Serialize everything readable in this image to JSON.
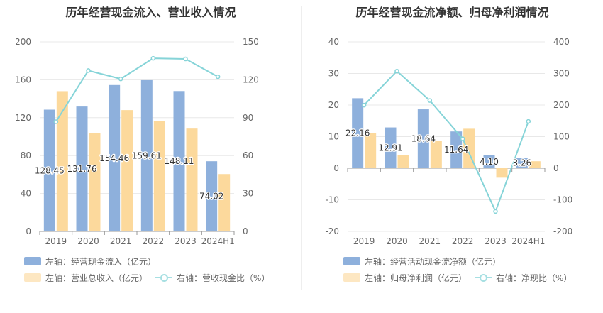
{
  "chart_data": [
    {
      "type": "bar",
      "title": "历年经营现金流入、营业收入情况",
      "categories": [
        "2019",
        "2020",
        "2021",
        "2022",
        "2023",
        "2024H1"
      ],
      "series": [
        {
          "name": "左轴：经营现金流入（亿元）",
          "axis": "left",
          "type": "bar",
          "color": "#8eb0dc",
          "values": [
            128.45,
            131.76,
            154.46,
            159.61,
            148.11,
            74.02
          ],
          "labels_shown": true
        },
        {
          "name": "左轴：营业总收入（亿元）",
          "axis": "left",
          "type": "bar",
          "color": "#fcd99c",
          "values": [
            148,
            103.5,
            128,
            116.5,
            108.5,
            60.5
          ],
          "labels_shown": false
        },
        {
          "name": "右轴：营收现金比（%）",
          "axis": "right",
          "type": "line",
          "color": "#86d4d8",
          "values": [
            86.8,
            127.3,
            120.7,
            137.0,
            136.5,
            122.4
          ],
          "labels_shown": false
        }
      ],
      "left_axis": {
        "min": 0,
        "max": 200,
        "ticks": [
          "0",
          "40",
          "80",
          "120",
          "160",
          "200"
        ]
      },
      "right_axis": {
        "min": 0,
        "max": 150,
        "ticks": [
          "0",
          "30",
          "60",
          "90",
          "120",
          "150"
        ]
      },
      "grid": true,
      "legend_position": "bottom-left"
    },
    {
      "type": "bar",
      "title": "历年经营现金流净额、归母净利润情况",
      "categories": [
        "2019",
        "2020",
        "2021",
        "2022",
        "2023",
        "2024H1"
      ],
      "series": [
        {
          "name": "左轴：经营活动现金流净额（亿元）",
          "axis": "left",
          "type": "bar",
          "color": "#8eb0dc",
          "values": [
            22.16,
            12.91,
            18.64,
            11.64,
            4.1,
            3.26
          ],
          "labels_shown": true
        },
        {
          "name": "左轴：归母净利润（亿元）",
          "axis": "left",
          "type": "bar",
          "color": "#fcd99c",
          "values": [
            11.1,
            4.2,
            8.7,
            12.5,
            -3.0,
            2.2
          ],
          "labels_shown": false
        },
        {
          "name": "右轴：净现比（%）",
          "axis": "right",
          "type": "line",
          "color": "#86d4d8",
          "values": [
            199.6,
            307.4,
            214.3,
            93.1,
            -136.7,
            148.2
          ],
          "labels_shown": false
        }
      ],
      "left_axis": {
        "min": -20,
        "max": 40,
        "ticks": [
          "-20",
          "-10",
          "0",
          "10",
          "20",
          "30",
          "40"
        ]
      },
      "right_axis": {
        "min": -200,
        "max": 400,
        "ticks": [
          "-200",
          "-100",
          "0",
          "100",
          "200",
          "300",
          "400"
        ]
      },
      "grid": true,
      "legend_position": "bottom-left"
    }
  ]
}
